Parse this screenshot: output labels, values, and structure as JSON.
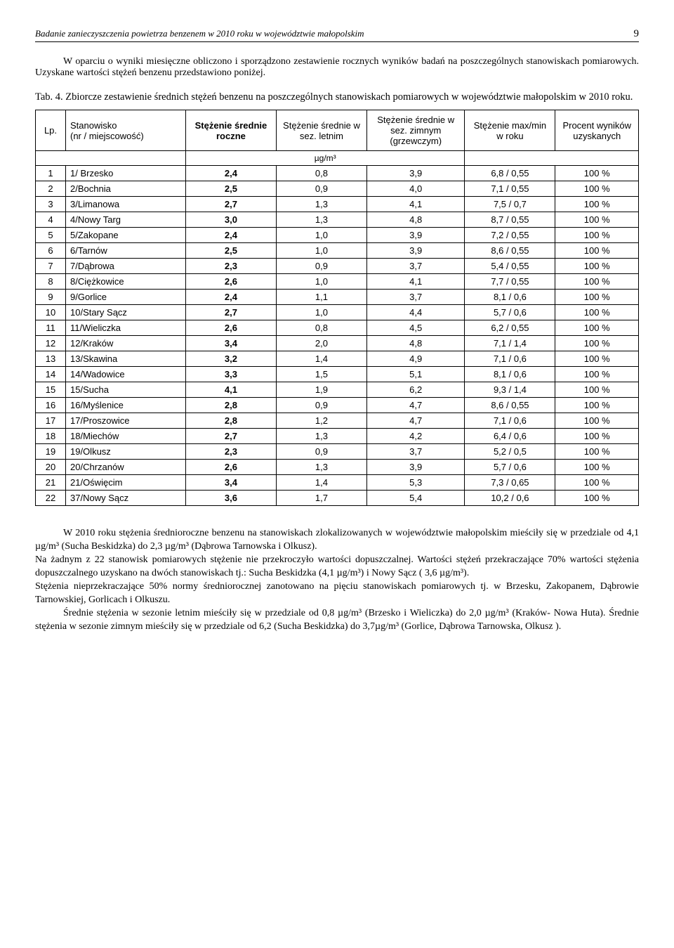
{
  "header": {
    "title": "Badanie zanieczyszczenia powietrza benzenem w 2010 roku w województwie małopolskim",
    "page": "9"
  },
  "intro": "W oparciu o wyniki miesięczne obliczono i sporządzono zestawienie rocznych wyników badań na poszczególnych stanowiskach pomiarowych. Uzyskane wartości stężeń benzenu przedstawiono poniżej.",
  "table_caption": "Tab. 4. Zbiorcze zestawienie średnich stężeń benzenu na poszczególnych stanowiskach pomiarowych w województwie małopolskim w 2010 roku.",
  "table": {
    "columns": {
      "lp": "Lp.",
      "station": "Stanowisko (nr / miejscowość)",
      "annual": "Stężenie średnie roczne",
      "summer": "Stężenie średnie w sez. letnim",
      "winter": "Stężenie średnie w sez. zimnym (grzewczym)",
      "maxmin": "Stężenie max/min w roku",
      "percent": "Procent wyników uzyskanych",
      "unit": "µg/m³"
    },
    "rows": [
      {
        "lp": "1",
        "station": "1/ Brzesko",
        "annual": "2,4",
        "summer": "0,8",
        "winter": "3,9",
        "maxmin": "6,8 / 0,55",
        "percent": "100 %"
      },
      {
        "lp": "2",
        "station": "2/Bochnia",
        "annual": "2,5",
        "summer": "0,9",
        "winter": "4,0",
        "maxmin": "7,1 / 0,55",
        "percent": "100 %"
      },
      {
        "lp": "3",
        "station": "3/Limanowa",
        "annual": "2,7",
        "summer": "1,3",
        "winter": "4,1",
        "maxmin": "7,5 / 0,7",
        "percent": "100 %"
      },
      {
        "lp": "4",
        "station": "4/Nowy Targ",
        "annual": "3,0",
        "summer": "1,3",
        "winter": "4,8",
        "maxmin": "8,7 / 0,55",
        "percent": "100 %"
      },
      {
        "lp": "5",
        "station": "5/Zakopane",
        "annual": "2,4",
        "summer": "1,0",
        "winter": "3,9",
        "maxmin": "7,2 / 0,55",
        "percent": "100 %"
      },
      {
        "lp": "6",
        "station": "6/Tarnów",
        "annual": "2,5",
        "summer": "1,0",
        "winter": "3,9",
        "maxmin": "8,6 / 0,55",
        "percent": "100 %"
      },
      {
        "lp": "7",
        "station": "7/Dąbrowa",
        "annual": "2,3",
        "summer": "0,9",
        "winter": "3,7",
        "maxmin": "5,4 / 0,55",
        "percent": "100 %"
      },
      {
        "lp": "8",
        "station": "8/Ciężkowice",
        "annual": "2,6",
        "summer": "1,0",
        "winter": "4,1",
        "maxmin": "7,7 / 0,55",
        "percent": "100 %"
      },
      {
        "lp": "9",
        "station": "9/Gorlice",
        "annual": "2,4",
        "summer": "1,1",
        "winter": "3,7",
        "maxmin": "8,1 / 0,6",
        "percent": "100 %"
      },
      {
        "lp": "10",
        "station": "10/Stary Sącz",
        "annual": "2,7",
        "summer": "1,0",
        "winter": "4,4",
        "maxmin": "5,7 / 0,6",
        "percent": "100 %"
      },
      {
        "lp": "11",
        "station": "11/Wieliczka",
        "annual": "2,6",
        "summer": "0,8",
        "winter": "4,5",
        "maxmin": "6,2 / 0,55",
        "percent": "100 %"
      },
      {
        "lp": "12",
        "station": "12/Kraków",
        "annual": "3,4",
        "summer": "2,0",
        "winter": "4,8",
        "maxmin": "7,1 / 1,4",
        "percent": "100 %"
      },
      {
        "lp": "13",
        "station": "13/Skawina",
        "annual": "3,2",
        "summer": "1,4",
        "winter": "4,9",
        "maxmin": "7,1 / 0,6",
        "percent": "100 %"
      },
      {
        "lp": "14",
        "station": "14/Wadowice",
        "annual": "3,3",
        "summer": "1,5",
        "winter": "5,1",
        "maxmin": "8,1 / 0,6",
        "percent": "100 %"
      },
      {
        "lp": "15",
        "station": "15/Sucha",
        "annual": "4,1",
        "summer": "1,9",
        "winter": "6,2",
        "maxmin": "9,3 / 1,4",
        "percent": "100 %"
      },
      {
        "lp": "16",
        "station": "16/Myślenice",
        "annual": "2,8",
        "summer": "0,9",
        "winter": "4,7",
        "maxmin": "8,6 / 0,55",
        "percent": "100 %"
      },
      {
        "lp": "17",
        "station": "17/Proszowice",
        "annual": "2,8",
        "summer": "1,2",
        "winter": "4,7",
        "maxmin": "7,1 / 0,6",
        "percent": "100 %"
      },
      {
        "lp": "18",
        "station": "18/Miechów",
        "annual": "2,7",
        "summer": "1,3",
        "winter": "4,2",
        "maxmin": "6,4 / 0,6",
        "percent": "100 %"
      },
      {
        "lp": "19",
        "station": "19/Olkusz",
        "annual": "2,3",
        "summer": "0,9",
        "winter": "3,7",
        "maxmin": "5,2 / 0,5",
        "percent": "100 %"
      },
      {
        "lp": "20",
        "station": "20/Chrzanów",
        "annual": "2,6",
        "summer": "1,3",
        "winter": "3,9",
        "maxmin": "5,7 / 0,6",
        "percent": "100 %"
      },
      {
        "lp": "21",
        "station": "21/Oświęcim",
        "annual": "3,4",
        "summer": "1,4",
        "winter": "5,3",
        "maxmin": "7,3 / 0,65",
        "percent": "100 %"
      },
      {
        "lp": "22",
        "station": "37/Nowy Sącz",
        "annual": "3,6",
        "summer": "1,7",
        "winter": "5,4",
        "maxmin": "10,2 / 0,6",
        "percent": "100 %"
      }
    ]
  },
  "body": {
    "p1": "W 2010 roku stężenia średnioroczne benzenu na stanowiskach zlokalizowanych w województwie małopolskim mieściły się w przedziale od 4,1 µg/m³ (Sucha Beskidzka) do 2,3 µg/m³ (Dąbrowa Tarnowska i Olkusz).",
    "p2": "Na żadnym z 22 stanowisk pomiarowych stężenie nie przekroczyło wartości dopuszczalnej. Wartości stężeń przekraczające 70% wartości stężenia dopuszczalnego uzyskano na dwóch stanowiskach tj.: Sucha Beskidzka (4,1 µg/m³) i  Nowy Sącz ( 3,6 µg/m³).",
    "p3": "Stężenia nieprzekraczające 50% normy średniorocznej zanotowano na pięciu stanowiskach pomiarowych tj. w Brzesku, Zakopanem, Dąbrowie Tarnowskiej, Gorlicach i Olkuszu.",
    "p4": "Średnie stężenia w sezonie letnim mieściły się w przedziale od 0,8 µg/m³ (Brzesko i Wieliczka) do 2,0 µg/m³ (Kraków- Nowa Huta). Średnie stężenia w sezonie zimnym mieściły się w przedziale od 6,2 (Sucha Beskidzka) do 3,7µg/m³ (Gorlice, Dąbrowa Tarnowska, Olkusz )."
  }
}
